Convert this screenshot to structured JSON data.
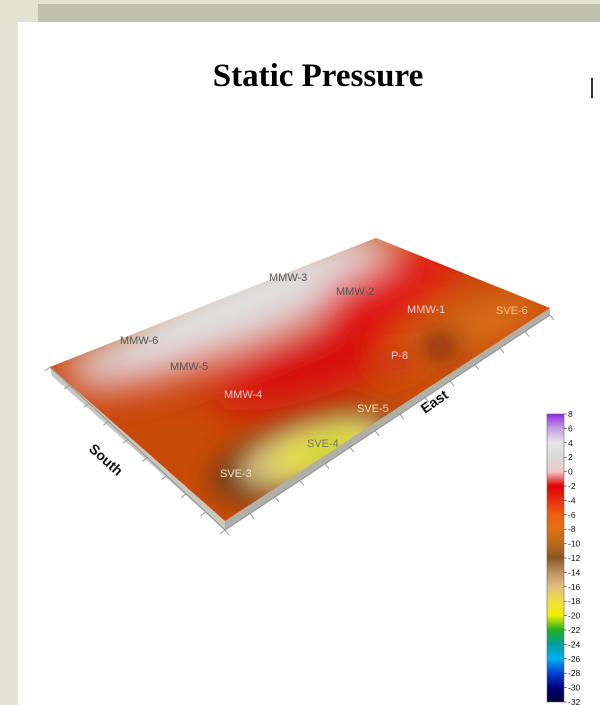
{
  "title": "Static Pressure",
  "chart_data": {
    "type": "heatmap",
    "title": "Static Pressure",
    "axes": {
      "left_side": "South",
      "right_side": "East"
    },
    "wells": [
      {
        "name": "MMW-3",
        "value": 0
      },
      {
        "name": "MMW-2",
        "value": -2
      },
      {
        "name": "MMW-1",
        "value": -3
      },
      {
        "name": "SVE-6",
        "value": -8
      },
      {
        "name": "MMW-6",
        "value": 0
      },
      {
        "name": "MMW-5",
        "value": -1
      },
      {
        "name": "P-8",
        "value": -6
      },
      {
        "name": "MMW-4",
        "value": -4
      },
      {
        "name": "SVE-5",
        "value": -14
      },
      {
        "name": "SVE-4",
        "value": -20
      },
      {
        "name": "SVE-3",
        "value": -16
      }
    ],
    "colorbar": {
      "ticks": [
        "8",
        "6",
        "4",
        "2",
        "0",
        "-2",
        "-4",
        "-6",
        "-8",
        "-10",
        "-12",
        "-14",
        "-16",
        "-18",
        "-20",
        "-22",
        "-24",
        "-26",
        "-28",
        "-30",
        "-32"
      ],
      "range": [
        -32,
        8
      ],
      "colors": [
        "#8a2be2",
        "#c7a0e0",
        "#e6e6e6",
        "#d9d9d9",
        "#f2c8c8",
        "#e00000",
        "#e83010",
        "#ee6010",
        "#e07010",
        "#b86a20",
        "#8c5520",
        "#c09060",
        "#e0c080",
        "#f0e040",
        "#f0f000",
        "#20b020",
        "#00a0a0",
        "#00b0f0",
        "#0040d0",
        "#000080",
        "#000030"
      ]
    }
  }
}
